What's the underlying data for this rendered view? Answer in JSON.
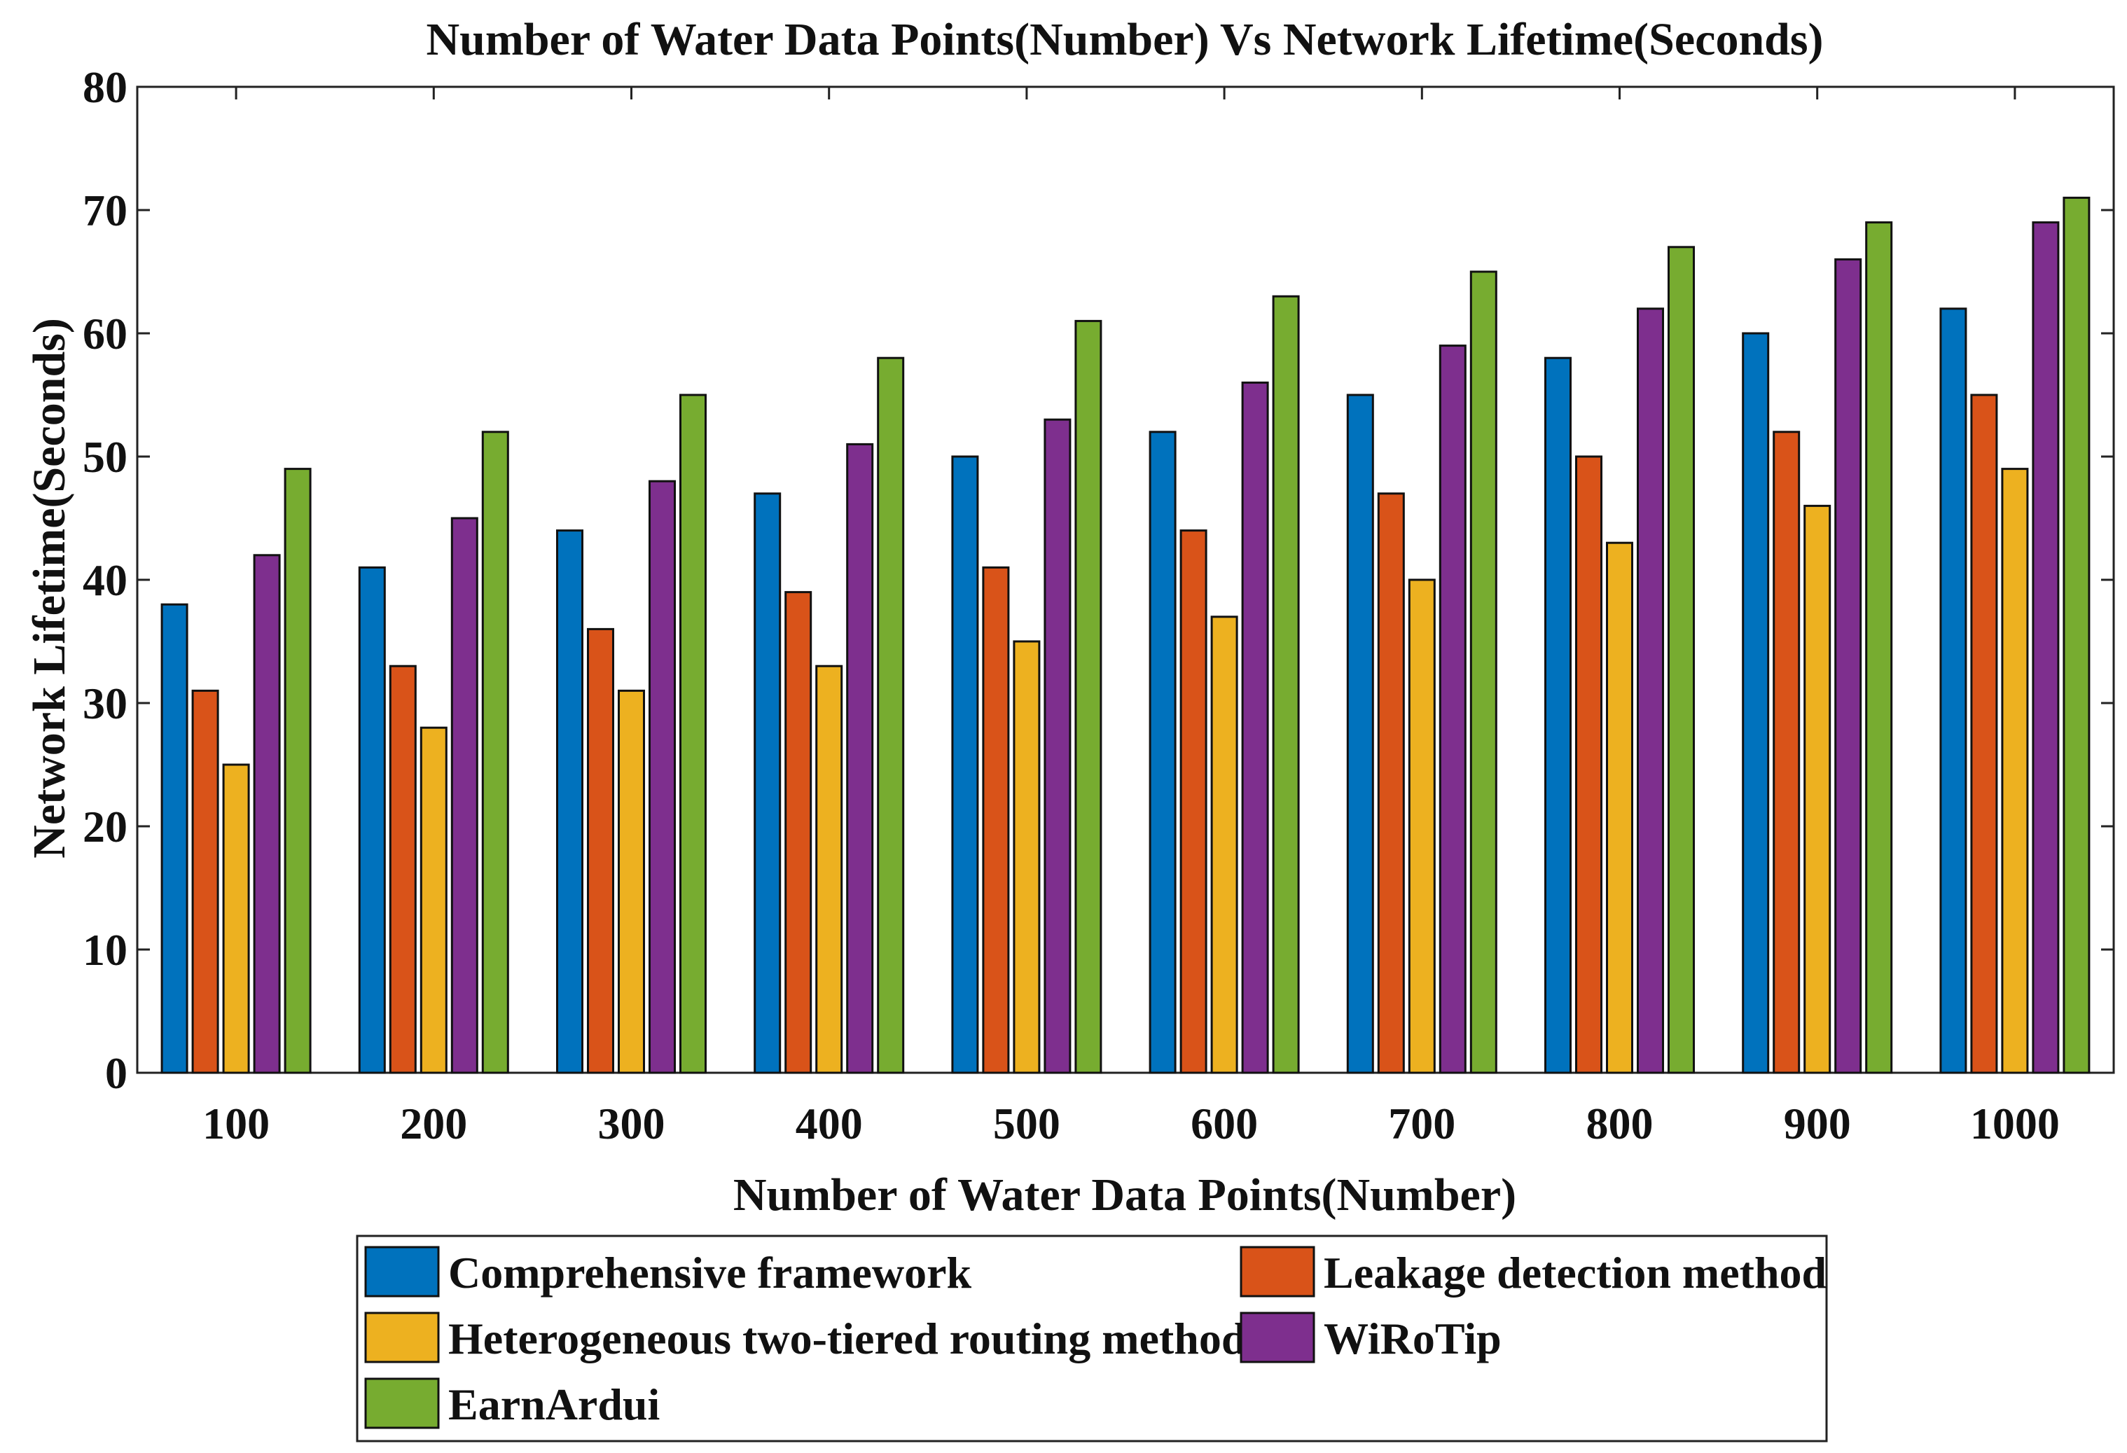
{
  "chart_data": {
    "type": "bar",
    "title": "Number of Water Data Points(Number) Vs Network Lifetime(Seconds)",
    "xlabel": "Number of Water Data Points(Number)",
    "ylabel": "Network Lifetime(Seconds)",
    "ylim": [
      0,
      80
    ],
    "yticks": [
      0,
      10,
      20,
      30,
      40,
      50,
      60,
      70,
      80
    ],
    "categories": [
      "100",
      "200",
      "300",
      "400",
      "500",
      "600",
      "700",
      "800",
      "900",
      "1000"
    ],
    "legend_position": "bottom",
    "grid": false,
    "series": [
      {
        "name": "Comprehensive framework",
        "color": "#0072BD",
        "values": [
          38,
          41,
          44,
          47,
          50,
          52,
          55,
          58,
          60,
          62
        ]
      },
      {
        "name": "Leakage detection method",
        "color": "#D95319",
        "values": [
          31,
          33,
          36,
          39,
          41,
          44,
          47,
          50,
          52,
          55
        ]
      },
      {
        "name": "Heterogeneous two-tiered routing method",
        "color": "#EDB120",
        "values": [
          25,
          28,
          31,
          33,
          35,
          37,
          40,
          43,
          46,
          49
        ]
      },
      {
        "name": "WiRoTip",
        "color": "#7E2F8E",
        "values": [
          42,
          45,
          48,
          51,
          53,
          56,
          59,
          62,
          66,
          69
        ]
      },
      {
        "name": "EarnArdui",
        "color": "#77AC30",
        "values": [
          49,
          52,
          55,
          58,
          61,
          63,
          65,
          67,
          69,
          71
        ]
      }
    ]
  }
}
